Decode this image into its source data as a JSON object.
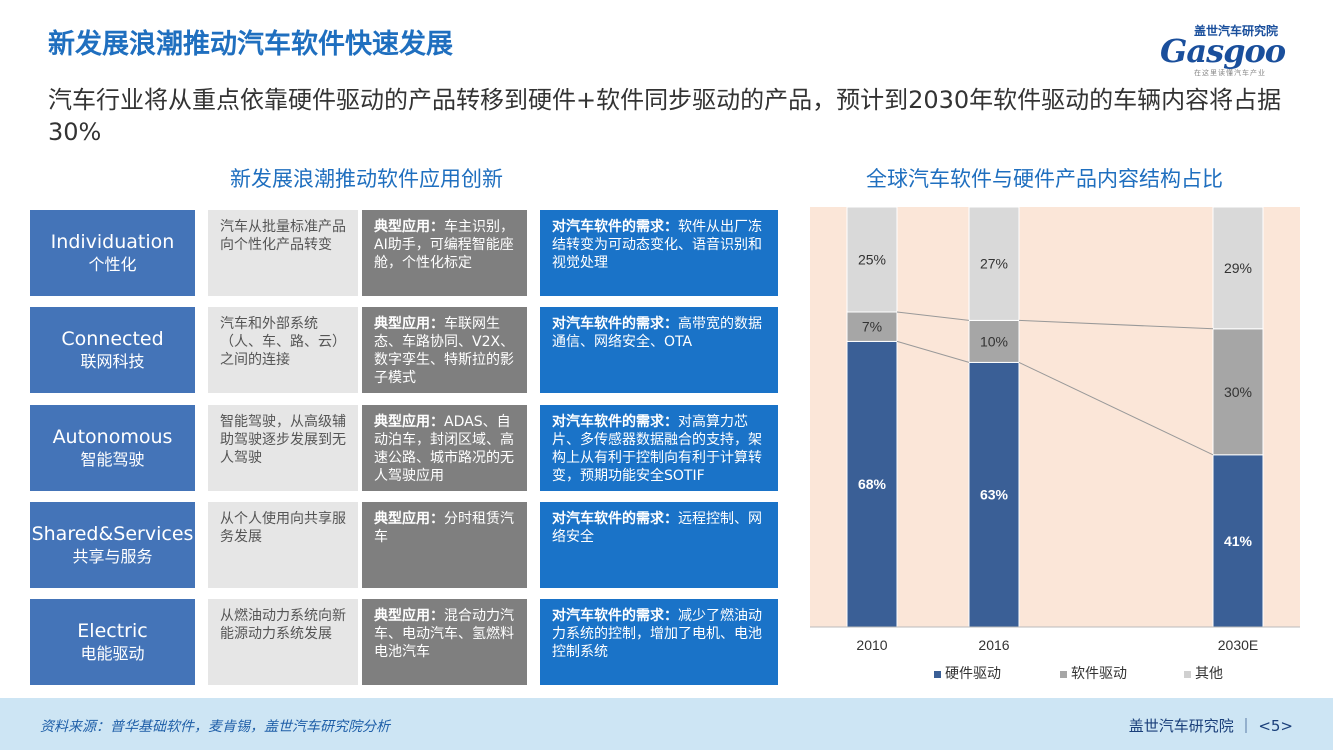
{
  "header": {
    "title": "新发展浪潮推动汽车软件快速发展",
    "subtitle": "汽车行业将从重点依靠硬件驱动的产品转移到硬件+软件同步驱动的产品，预计到2030年软件驱动的车辆内容将占据30%"
  },
  "logo": {
    "top_text": "盖世汽车研究院",
    "main_text": "Gasgoo",
    "sub_text": "在这里读懂汽车产业"
  },
  "left": {
    "section_title": "新发展浪潮推动软件应用创新",
    "app_prefix": "典型应用：",
    "need_prefix": "对汽车软件的需求：",
    "rows": [
      {
        "en": "Individuation",
        "zh": "个性化",
        "desc": "汽车从批量标准产品向个性化产品转变",
        "app": "车主识别，AI助手，可编程智能座舱，个性化标定",
        "need": "软件从出厂冻结转变为可动态变化、语音识别和视觉处理"
      },
      {
        "en": "Connected",
        "zh": "联网科技",
        "desc": "汽车和外部系统（人、车、路、云）之间的连接",
        "app": "车联网生态、车路协同、V2X、数字孪生、特斯拉的影子模式",
        "need": "高带宽的数据通信、网络安全、OTA"
      },
      {
        "en": "Autonomous",
        "zh": "智能驾驶",
        "desc": "智能驾驶，从高级辅助驾驶逐步发展到无人驾驶",
        "app": "ADAS、自动泊车，封闭区域、高速公路、城市路况的无人驾驶应用",
        "need": "对高算力芯片、多传感器数据融合的支持，架构上从有利于控制向有利于计算转变，预期功能安全SOTIF"
      },
      {
        "en": "Shared&Services",
        "zh": "共享与服务",
        "desc": "从个人使用向共享服务发展",
        "app": "分时租赁汽车",
        "need": "远程控制、网络安全"
      },
      {
        "en": "Electric",
        "zh": "电能驱动",
        "desc": "从燃油动力系统向新能源动力系统发展",
        "app": "混合动力汽车、电动汽车、氢燃料电池汽车",
        "need": "减少了燃油动力系统的控制，增加了电机、电池控制系统"
      }
    ]
  },
  "chart_title": "全球汽车软件与硬件产品内容结构占比",
  "chart_data": {
    "type": "bar",
    "stacked": true,
    "categories": [
      "2010",
      "2016",
      "2030E"
    ],
    "series": [
      {
        "name": "硬件驱动",
        "values": [
          68,
          63,
          41
        ],
        "labels": [
          "68%",
          "63%",
          "41%"
        ],
        "color": "#3a5f96"
      },
      {
        "name": "软件驱动",
        "values": [
          7,
          10,
          30
        ],
        "labels": [
          "7%",
          "10%",
          "30%"
        ],
        "color": "#a6a6a6"
      },
      {
        "name": "其他",
        "values": [
          25,
          27,
          29
        ],
        "labels": [
          "25%",
          "27%",
          "29%"
        ],
        "color": "#d9d9d9"
      }
    ],
    "ylim": [
      0,
      100
    ],
    "background": "#fbe6d8",
    "legend": "bottom"
  },
  "footer": {
    "source": "资料来源：普华基础软件，麦肯锡，盖世汽车研究院分析",
    "brand": "盖世汽车研究院",
    "page": "<5>"
  }
}
